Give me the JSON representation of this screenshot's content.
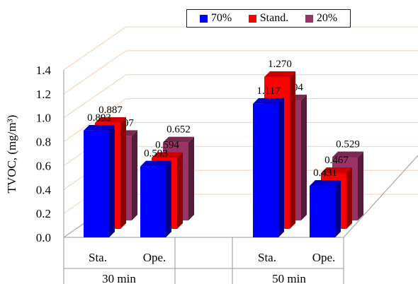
{
  "chart_data": {
    "type": "bar",
    "ylabel": "TVOC, (mg/m³)",
    "ylim": [
      0,
      1.4
    ],
    "yticks": [
      "0.0",
      "0.2",
      "0.4",
      "0.6",
      "0.8",
      "1.0",
      "1.2",
      "1.4"
    ],
    "groups": [
      {
        "label": "30 min",
        "categories": [
          "Sta.",
          "Ope."
        ]
      },
      {
        "label": "50 min",
        "categories": [
          "Sta.",
          "Ope."
        ]
      }
    ],
    "series": [
      {
        "name": "70%",
        "color": "#0000ff",
        "values": [
          0.893,
          0.593,
          1.117,
          0.431
        ],
        "labels": [
          "0.893",
          "0.593",
          "1.117",
          "0.431"
        ]
      },
      {
        "name": "Stand.",
        "color": "#ff0000",
        "values": [
          0.887,
          0.594,
          1.27,
          0.467
        ],
        "labels": [
          "0.887",
          "0.594",
          "1.270",
          "0.467"
        ]
      },
      {
        "name": "20%",
        "color": "#993366",
        "values": [
          0.707,
          0.652,
          1.004,
          0.529
        ],
        "labels": [
          "0.707",
          "0.652",
          "1.004",
          "0.529"
        ]
      }
    ],
    "legend": "top-right",
    "grid": true
  }
}
